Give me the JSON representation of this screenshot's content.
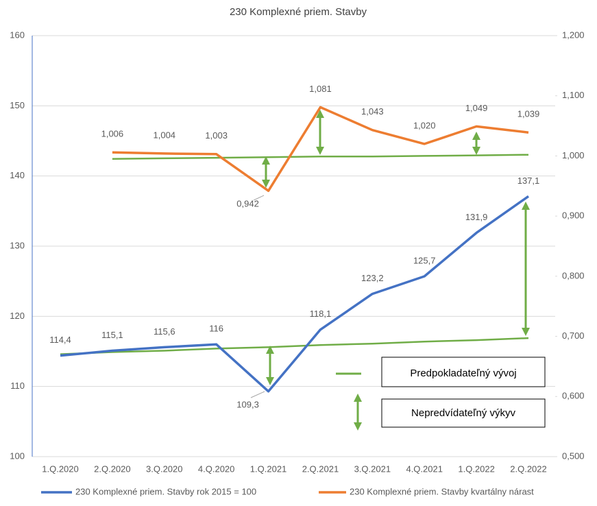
{
  "chart_data": {
    "type": "line",
    "title": "230 Komplexné priem. Stavby",
    "categories": [
      "1.Q.2020",
      "2.Q.2020",
      "3.Q.2020",
      "4.Q.2020",
      "1.Q.2021",
      "2.Q.2021",
      "3.Q.2021",
      "4.Q.2021",
      "1.Q.2022",
      "2.Q.2022"
    ],
    "series": [
      {
        "name": "230 Komplexné priem. Stavby rok 2015 = 100",
        "color": "#4472c4",
        "axis": "y",
        "values": [
          114.4,
          115.1,
          115.6,
          116,
          109.3,
          118.1,
          123.2,
          125.7,
          131.9,
          137.1
        ],
        "value_labels": [
          "114,4",
          "115,1",
          "115,6",
          "116",
          "109,3",
          "118,1",
          "123,2",
          "125,7",
          "131,9",
          "137,1"
        ]
      },
      {
        "name": "230 Komplexné priem. Stavby kvartálny nárast",
        "color": "#ed7d31",
        "axis": "y2",
        "values": [
          null,
          1.006,
          1.004,
          1.003,
          0.942,
          1.081,
          1.043,
          1.02,
          1.049,
          1.039
        ],
        "value_labels": [
          null,
          "1,006",
          "1,004",
          "1,003",
          "0,942",
          "1,081",
          "1,043",
          "1,020",
          "1,049",
          "1,039"
        ]
      }
    ],
    "trend": {
      "name": "Predpokladateľný vývoj",
      "color": "#70ad47",
      "lines": [
        {
          "axis": "y",
          "values": [
            114.6,
            114.9,
            115.1,
            115.4,
            115.6,
            115.9,
            116.1,
            116.4,
            116.6,
            116.9
          ]
        },
        {
          "axis": "y2",
          "values": [
            null,
            0.995,
            0.996,
            0.997,
            0.998,
            0.999,
            0.999,
            1.0,
            1.001,
            1.002
          ]
        }
      ]
    },
    "deviation": {
      "name": "Nepredvídateľný výkyv",
      "color": "#70ad47"
    },
    "ylim": [
      100,
      160
    ],
    "yticks": [
      100,
      110,
      120,
      130,
      140,
      150,
      160
    ],
    "y2lim": [
      0.5,
      1.2
    ],
    "y2ticks": [
      {
        "value": 0.5,
        "label": "0,500"
      },
      {
        "value": 0.6,
        "label": "0,600"
      },
      {
        "value": 0.7,
        "label": "0,700"
      },
      {
        "value": 0.8,
        "label": "0,800"
      },
      {
        "value": 0.9,
        "label": "0,900"
      },
      {
        "value": 1.0,
        "label": "1,000"
      },
      {
        "value": 1.1,
        "label": "1,100"
      },
      {
        "value": 1.2,
        "label": "1,200"
      }
    ],
    "grid": true
  }
}
